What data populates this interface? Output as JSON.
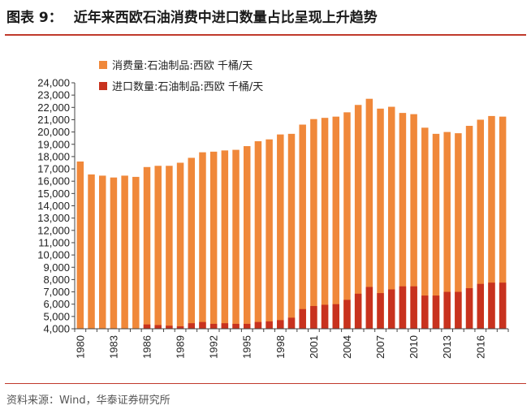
{
  "header": {
    "figure_number": "图表 9：",
    "title": "近年来西欧石油消费中进口数量占比呈现上升趋势"
  },
  "source": "资料来源：Wind，华泰证券研究所",
  "colors": {
    "consumption": "#f0883a",
    "imports": "#c8321e",
    "rule": "#c0392b"
  },
  "chart_data": {
    "type": "bar",
    "categories": [
      "1980",
      "1981",
      "1982",
      "1983",
      "1984",
      "1985",
      "1986",
      "1987",
      "1988",
      "1989",
      "1990",
      "1991",
      "1992",
      "1993",
      "1994",
      "1995",
      "1996",
      "1997",
      "1998",
      "1999",
      "2000",
      "2001",
      "2002",
      "2003",
      "2004",
      "2005",
      "2006",
      "2007",
      "2008",
      "2009",
      "2010",
      "2011",
      "2012",
      "2013",
      "2014",
      "2015",
      "2016",
      "2017",
      "2018"
    ],
    "x_tick_labels": [
      "1980",
      "1983",
      "1986",
      "1989",
      "1992",
      "1995",
      "1998",
      "2001",
      "2004",
      "2007",
      "2010",
      "2013",
      "2016"
    ],
    "series": [
      {
        "name": "消费量:石油制品:西欧 千桶/天",
        "values": [
          17600,
          16550,
          16450,
          16300,
          16450,
          16350,
          17150,
          17250,
          17250,
          17500,
          17900,
          18350,
          18400,
          18500,
          18550,
          18850,
          19250,
          19400,
          19800,
          19850,
          20600,
          21050,
          21150,
          21250,
          21600,
          22200,
          22700,
          21900,
          22050,
          21550,
          21450,
          20350,
          19850,
          20000,
          19900,
          20500,
          21000,
          21300,
          21250
        ]
      },
      {
        "name": "进口数量:石油制品:西欧 千桶/天",
        "values": [
          null,
          null,
          null,
          null,
          null,
          null,
          4350,
          4300,
          4250,
          4200,
          4450,
          4550,
          4400,
          4450,
          4400,
          4400,
          4550,
          4600,
          4700,
          4900,
          5600,
          5850,
          5950,
          6000,
          6350,
          6850,
          7400,
          6900,
          7200,
          7450,
          7450,
          6700,
          6700,
          7000,
          7000,
          7300,
          7650,
          7750,
          7750
        ]
      }
    ],
    "ylim": [
      4000,
      24000
    ],
    "y_ticks": [
      "4,000",
      "5,000",
      "6,000",
      "7,000",
      "8,000",
      "9,000",
      "10,000",
      "11,000",
      "12,000",
      "13,000",
      "14,000",
      "15,000",
      "16,000",
      "17,000",
      "18,000",
      "19,000",
      "20,000",
      "21,000",
      "22,000",
      "23,000",
      "24,000"
    ],
    "legend_position": "top-left",
    "grid": false
  }
}
